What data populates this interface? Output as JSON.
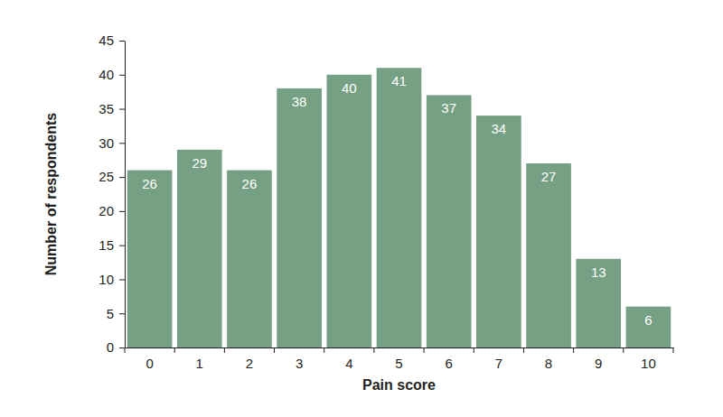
{
  "chart_data": {
    "type": "bar",
    "x_label": "Pain score",
    "y_label": "Number of respondents",
    "categories": [
      "0",
      "1",
      "2",
      "3",
      "4",
      "5",
      "6",
      "7",
      "8",
      "9",
      "10"
    ],
    "values": [
      26,
      29,
      26,
      38,
      40,
      41,
      37,
      34,
      27,
      13,
      6
    ],
    "color": "#76a083",
    "ylim": [
      0,
      45
    ],
    "yticks": [
      0,
      5,
      10,
      15,
      20,
      25,
      30,
      35,
      40,
      45
    ],
    "grid": false,
    "data_labels": true
  }
}
